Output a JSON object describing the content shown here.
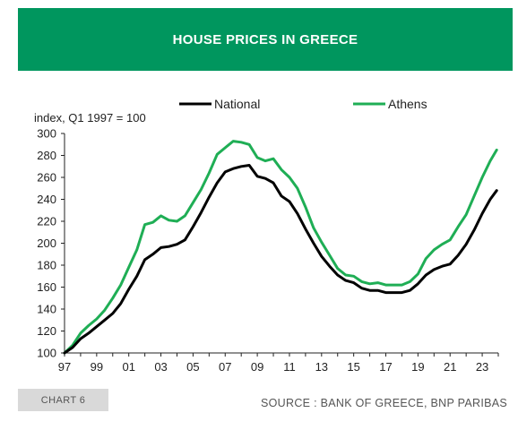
{
  "header": {
    "title": "HOUSE PRICES IN GREECE"
  },
  "footer": {
    "chart_tag": "CHART 6",
    "source": "SOURCE : BANK OF GREECE, BNP PARIBAS"
  },
  "colors": {
    "header_bg": "#00965e",
    "national": "#000000",
    "athens": "#1fae55",
    "tag_bg": "#d9d9d9"
  },
  "chart_data": {
    "type": "line",
    "title": "HOUSE PRICES IN GREECE",
    "ylabel": "index, Q1 1997 = 100",
    "xlabel": "",
    "ylim": [
      100,
      300
    ],
    "yticks": [
      100,
      120,
      140,
      160,
      180,
      200,
      220,
      240,
      260,
      280,
      300
    ],
    "xticks": [
      "97",
      "99",
      "01",
      "03",
      "05",
      "07",
      "09",
      "11",
      "13",
      "15",
      "17",
      "19",
      "21",
      "23"
    ],
    "legend_position": "top",
    "grid": false,
    "series": [
      {
        "name": "National",
        "color": "#000000",
        "points": [
          [
            1997.0,
            100
          ],
          [
            1997.5,
            105
          ],
          [
            1998.0,
            113
          ],
          [
            1998.5,
            118
          ],
          [
            1999.0,
            124
          ],
          [
            1999.5,
            130
          ],
          [
            2000.0,
            136
          ],
          [
            2000.5,
            145
          ],
          [
            2001.0,
            158
          ],
          [
            2001.5,
            170
          ],
          [
            2002.0,
            185
          ],
          [
            2002.5,
            190
          ],
          [
            2003.0,
            196
          ],
          [
            2003.5,
            197
          ],
          [
            2004.0,
            199
          ],
          [
            2004.5,
            203
          ],
          [
            2005.0,
            215
          ],
          [
            2005.5,
            228
          ],
          [
            2006.0,
            242
          ],
          [
            2006.5,
            255
          ],
          [
            2007.0,
            265
          ],
          [
            2007.5,
            268
          ],
          [
            2008.0,
            270
          ],
          [
            2008.5,
            271
          ],
          [
            2009.0,
            261
          ],
          [
            2009.5,
            259
          ],
          [
            2010.0,
            255
          ],
          [
            2010.5,
            243
          ],
          [
            2011.0,
            238
          ],
          [
            2011.5,
            227
          ],
          [
            2012.0,
            213
          ],
          [
            2012.5,
            200
          ],
          [
            2013.0,
            188
          ],
          [
            2013.5,
            179
          ],
          [
            2014.0,
            171
          ],
          [
            2014.5,
            166
          ],
          [
            2015.0,
            164
          ],
          [
            2015.5,
            159
          ],
          [
            2016.0,
            157
          ],
          [
            2016.5,
            157
          ],
          [
            2017.0,
            155
          ],
          [
            2017.5,
            155
          ],
          [
            2018.0,
            155
          ],
          [
            2018.5,
            157
          ],
          [
            2019.0,
            163
          ],
          [
            2019.5,
            171
          ],
          [
            2020.0,
            176
          ],
          [
            2020.5,
            179
          ],
          [
            2021.0,
            181
          ],
          [
            2021.5,
            189
          ],
          [
            2022.0,
            199
          ],
          [
            2022.5,
            212
          ],
          [
            2023.0,
            227
          ],
          [
            2023.5,
            240
          ],
          [
            2023.9,
            248
          ]
        ]
      },
      {
        "name": "Athens",
        "color": "#1fae55",
        "points": [
          [
            1997.0,
            100
          ],
          [
            1997.5,
            107
          ],
          [
            1998.0,
            118
          ],
          [
            1998.5,
            125
          ],
          [
            1999.0,
            131
          ],
          [
            1999.5,
            139
          ],
          [
            2000.0,
            150
          ],
          [
            2000.5,
            162
          ],
          [
            2001.0,
            178
          ],
          [
            2001.5,
            194
          ],
          [
            2002.0,
            217
          ],
          [
            2002.5,
            219
          ],
          [
            2003.0,
            225
          ],
          [
            2003.5,
            221
          ],
          [
            2004.0,
            220
          ],
          [
            2004.5,
            225
          ],
          [
            2005.0,
            237
          ],
          [
            2005.5,
            249
          ],
          [
            2006.0,
            264
          ],
          [
            2006.5,
            281
          ],
          [
            2007.0,
            287
          ],
          [
            2007.5,
            293
          ],
          [
            2008.0,
            292
          ],
          [
            2008.5,
            290
          ],
          [
            2009.0,
            278
          ],
          [
            2009.5,
            275
          ],
          [
            2010.0,
            277
          ],
          [
            2010.5,
            267
          ],
          [
            2011.0,
            260
          ],
          [
            2011.5,
            250
          ],
          [
            2012.0,
            233
          ],
          [
            2012.5,
            214
          ],
          [
            2013.0,
            201
          ],
          [
            2013.5,
            189
          ],
          [
            2014.0,
            177
          ],
          [
            2014.5,
            171
          ],
          [
            2015.0,
            170
          ],
          [
            2015.5,
            165
          ],
          [
            2016.0,
            163
          ],
          [
            2016.5,
            164
          ],
          [
            2017.0,
            162
          ],
          [
            2017.5,
            162
          ],
          [
            2018.0,
            162
          ],
          [
            2018.5,
            165
          ],
          [
            2019.0,
            172
          ],
          [
            2019.5,
            186
          ],
          [
            2020.0,
            194
          ],
          [
            2020.5,
            199
          ],
          [
            2021.0,
            203
          ],
          [
            2021.5,
            215
          ],
          [
            2022.0,
            226
          ],
          [
            2022.5,
            243
          ],
          [
            2023.0,
            260
          ],
          [
            2023.5,
            275
          ],
          [
            2023.9,
            285
          ]
        ]
      }
    ]
  }
}
